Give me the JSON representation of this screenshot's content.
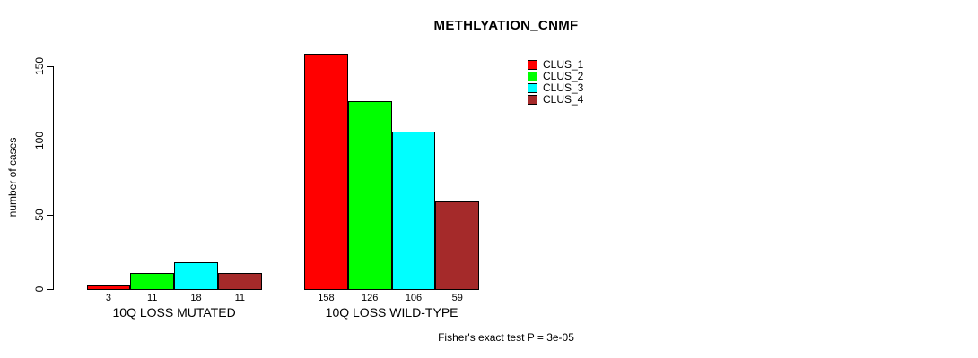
{
  "chart_data": {
    "type": "bar",
    "title": "METHLYATION_CNMF",
    "ylabel": "number of cases",
    "ylim": [
      0,
      150
    ],
    "yticks": [
      0,
      50,
      100,
      150
    ],
    "grid": false,
    "legend_position": "top-right",
    "categories": [
      "10Q LOSS MUTATED",
      "10Q LOSS WILD-TYPE"
    ],
    "series": [
      {
        "name": "CLUS_1",
        "color": "#FF0000",
        "values": [
          3,
          158
        ]
      },
      {
        "name": "CLUS_2",
        "color": "#00FF00",
        "values": [
          11,
          126
        ]
      },
      {
        "name": "CLUS_3",
        "color": "#00FFFF",
        "values": [
          18,
          106
        ]
      },
      {
        "name": "CLUS_4",
        "color": "#A52A2A",
        "values": [
          11,
          59
        ]
      }
    ],
    "bar_labels": [
      [
        "3",
        "11",
        "18",
        "11"
      ],
      [
        "158",
        "126",
        "106",
        "59"
      ]
    ],
    "footnote": "Fisher's exact test P = 3e-05"
  }
}
